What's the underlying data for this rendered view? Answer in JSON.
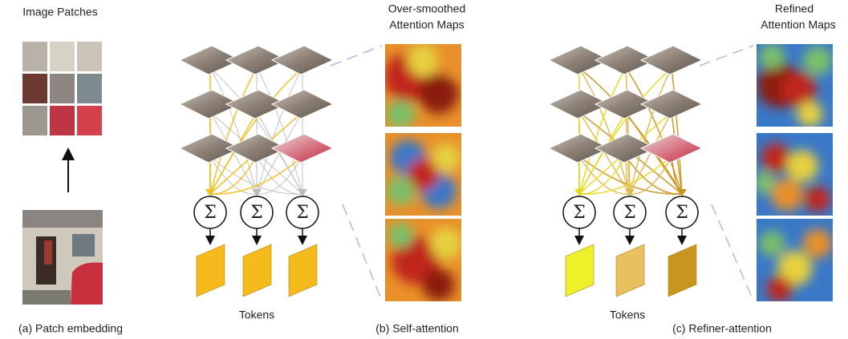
{
  "panel_a": {
    "title": "Image Patches",
    "caption": "(a) Patch embedding"
  },
  "panel_b": {
    "title_lines": [
      "Over-smoothed",
      "Attention Maps"
    ],
    "sums": [
      "Σ",
      "Σ",
      "Σ"
    ],
    "tokens_label": "Tokens",
    "caption": "(b) Self-attention"
  },
  "panel_c": {
    "title_lines": [
      "Refined",
      "Attention Maps"
    ],
    "sums": [
      "Σ",
      "Σ",
      "Σ"
    ],
    "tokens_label": "Tokens",
    "caption": "(c) Refiner-attention"
  }
}
